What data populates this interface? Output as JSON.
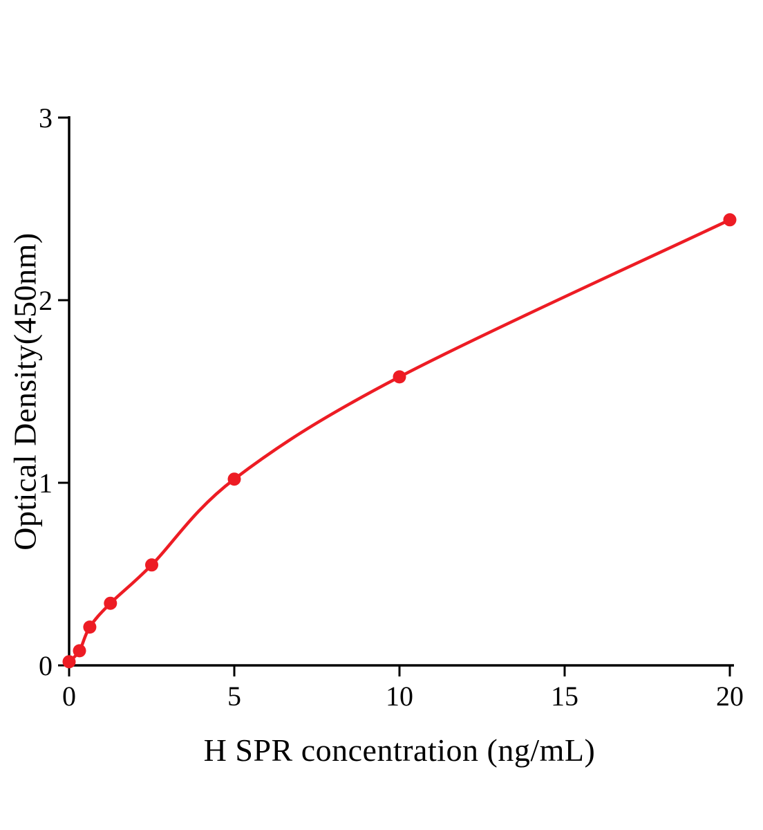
{
  "page": {
    "background": "#ffffff"
  },
  "chart_data": {
    "type": "scatter",
    "title": "",
    "xlabel": "H SPR concentration (ng/mL)",
    "ylabel": "Optical Density(450nm)",
    "x": [
      0,
      0.313,
      0.625,
      1.25,
      2.5,
      5,
      10,
      20
    ],
    "y": [
      0.02,
      0.08,
      0.21,
      0.34,
      0.55,
      1.02,
      1.58,
      2.44
    ],
    "xticks": [
      0,
      5,
      10,
      15,
      20
    ],
    "yticks": [
      0,
      1,
      2,
      3
    ],
    "xlim": [
      0,
      20
    ],
    "ylim": [
      0,
      3
    ],
    "curve": "smooth",
    "line_color": "#ed1c24",
    "marker_color": "#ed1c24",
    "axis_color": "#000000",
    "grid": false,
    "legend": null
  }
}
